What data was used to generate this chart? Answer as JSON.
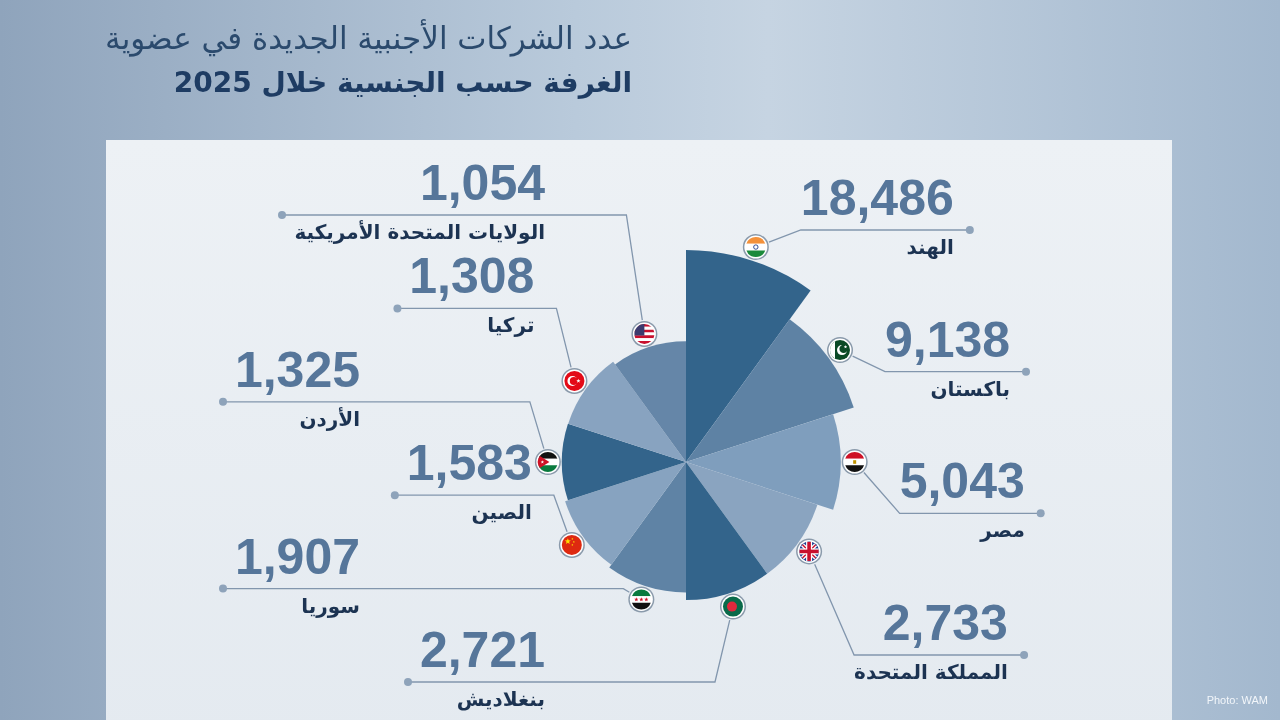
{
  "chart_data": {
    "type": "other",
    "title": "عدد الشركات الأجنبية الجديدة في عضوية",
    "subtitle": "الغرفة حسب الجنسية خلال 2025",
    "categories": [
      "الهند",
      "باكستان",
      "مصر",
      "المملكة المتحدة",
      "بنغلاديش",
      "سوريا",
      "الصين",
      "الأردن",
      "تركيا",
      "الولايات المتحدة الأمريكية"
    ],
    "values": [
      18486,
      9138,
      5043,
      2733,
      2721,
      1907,
      1583,
      1325,
      1308,
      1054
    ],
    "colors": [
      "#33648b",
      "#5e82a4",
      "#7f9ebd",
      "#8aa4c0",
      "#33648b",
      "#5f83a5",
      "#87a3c0",
      "#33648b",
      "#88a3c0",
      "#6586a8"
    ],
    "value_labels": [
      "18,486",
      "9,138",
      "5,043",
      "2,733",
      "2,721",
      "1,907",
      "1,583",
      "1,325",
      "1,308",
      "1,054"
    ],
    "annotations": [
      "Photo: WAM"
    ]
  }
}
